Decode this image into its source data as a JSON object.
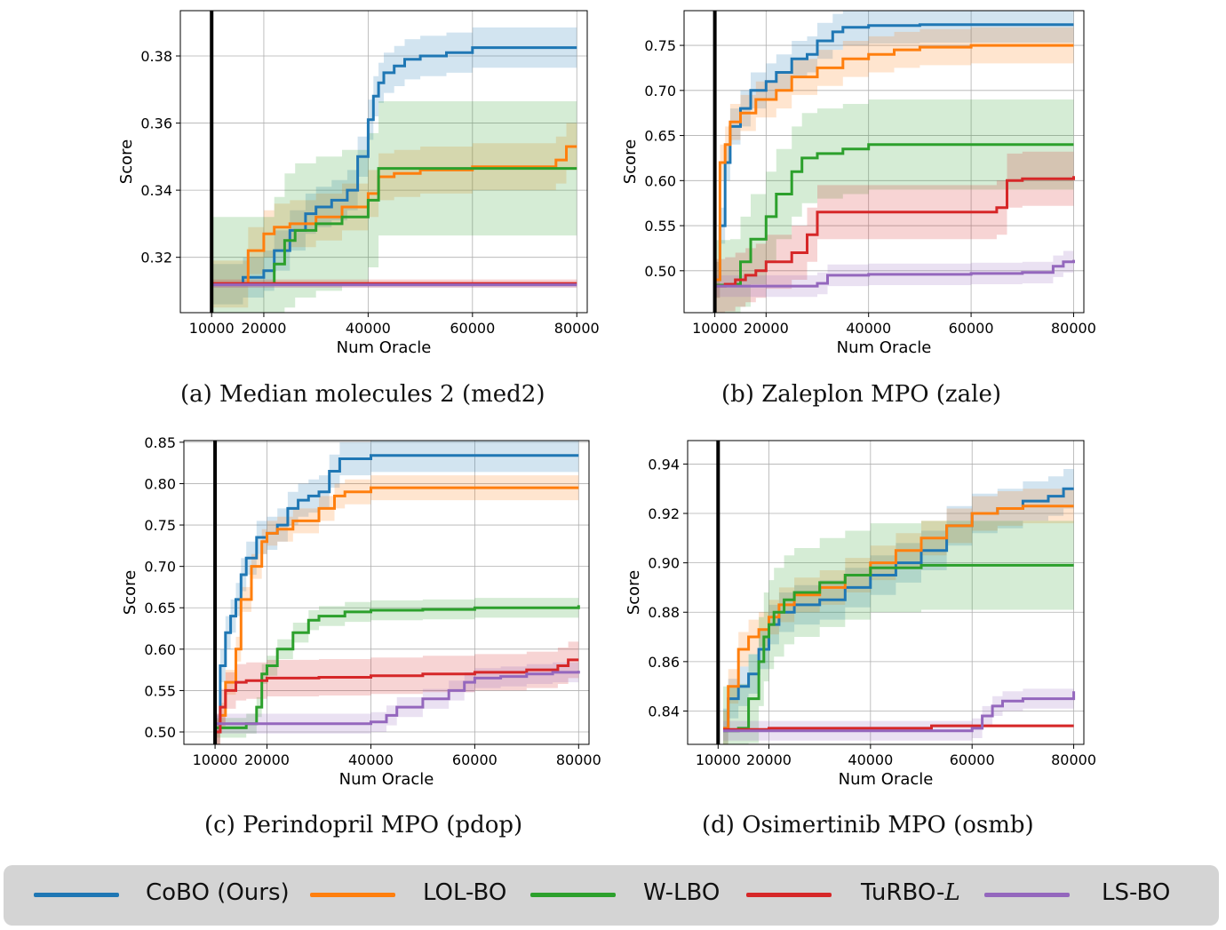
{
  "legend": {
    "entries": [
      {
        "name": "CoBO (Ours)",
        "color": "#1f77b4"
      },
      {
        "name": "LOL-BO",
        "color": "#ff7f0e"
      },
      {
        "name": "W-LBO",
        "color": "#2ca02c"
      },
      {
        "name": "TuRBO-",
        "name_italic": "L",
        "color": "#d62728"
      },
      {
        "name": "LS-BO",
        "color": "#9467bd"
      }
    ]
  },
  "chart_data": [
    {
      "type": "line",
      "caption": "(a) Median molecules 2 (med2)",
      "xlabel": "Num Oracle",
      "ylabel": "Score",
      "xlim": [
        4000,
        82000
      ],
      "ylim": [
        0.3035,
        0.3935
      ],
      "xticks": [
        10000,
        20000,
        40000,
        60000,
        80000
      ],
      "xtick_labels": [
        "10000",
        "20000",
        "40000",
        "60000",
        "80000"
      ],
      "yticks": [
        0.32,
        0.34,
        0.36,
        0.38
      ],
      "ytick_labels": [
        "0.32",
        "0.34",
        "0.36",
        "0.38"
      ],
      "vline": 10000,
      "series": [
        {
          "name": "CoBO (Ours)",
          "x": [
            10000,
            16000,
            20000,
            22000,
            25000,
            28000,
            30000,
            33000,
            36000,
            38000,
            40000,
            41000,
            42000,
            43000,
            45000,
            47000,
            50000,
            55000,
            60000,
            80000
          ],
          "values": [
            0.312,
            0.314,
            0.316,
            0.322,
            0.328,
            0.333,
            0.335,
            0.337,
            0.34,
            0.35,
            0.361,
            0.368,
            0.372,
            0.375,
            0.377,
            0.379,
            0.38,
            0.381,
            0.3825,
            0.3825
          ],
          "band": 0.006
        },
        {
          "name": "LOL-BO",
          "x": [
            10000,
            17000,
            20000,
            22000,
            25000,
            30000,
            35000,
            40000,
            42000,
            45000,
            50000,
            60000,
            70000,
            76000,
            78000,
            80000
          ],
          "values": [
            0.312,
            0.322,
            0.327,
            0.329,
            0.33,
            0.332,
            0.335,
            0.339,
            0.344,
            0.345,
            0.346,
            0.347,
            0.347,
            0.349,
            0.353,
            0.353
          ],
          "band": 0.007
        },
        {
          "name": "W-LBO",
          "x": [
            10000,
            20000,
            22000,
            24000,
            26000,
            30000,
            35000,
            40000,
            42000,
            50000,
            60000,
            80000
          ],
          "values": [
            0.312,
            0.312,
            0.318,
            0.325,
            0.328,
            0.33,
            0.332,
            0.337,
            0.3465,
            0.3465,
            0.3465,
            0.3465
          ],
          "band": 0.02
        },
        {
          "name": "TuRBO-L",
          "x": [
            10000,
            80000
          ],
          "values": [
            0.3122,
            0.3122
          ],
          "band": 0.0012
        },
        {
          "name": "LS-BO",
          "x": [
            10000,
            80000
          ],
          "values": [
            0.3118,
            0.3118
          ],
          "band": 0.0008
        }
      ]
    },
    {
      "type": "line",
      "caption": "(b) Zaleplon MPO (zale)",
      "xlabel": "Num Oracle",
      "ylabel": "Score",
      "xlim": [
        4000,
        82000
      ],
      "ylim": [
        0.4535,
        0.7885
      ],
      "xticks": [
        10000,
        20000,
        40000,
        60000,
        80000
      ],
      "xtick_labels": [
        "10000",
        "20000",
        "40000",
        "60000",
        "80000"
      ],
      "yticks": [
        0.5,
        0.55,
        0.6,
        0.65,
        0.7,
        0.75
      ],
      "ytick_labels": [
        "0.50",
        "0.55",
        "0.60",
        "0.65",
        "0.70",
        "0.75"
      ],
      "vline": 10000,
      "series": [
        {
          "name": "CoBO (Ours)",
          "x": [
            10000,
            11000,
            12000,
            13000,
            15000,
            17000,
            20000,
            22000,
            25000,
            28000,
            30000,
            33000,
            35000,
            40000,
            50000,
            80000
          ],
          "values": [
            0.49,
            0.55,
            0.62,
            0.66,
            0.68,
            0.7,
            0.71,
            0.72,
            0.735,
            0.74,
            0.755,
            0.765,
            0.77,
            0.772,
            0.773,
            0.773
          ],
          "band": 0.02
        },
        {
          "name": "LOL-BO",
          "x": [
            10000,
            11000,
            12000,
            13000,
            15000,
            18000,
            22000,
            25000,
            30000,
            35000,
            40000,
            45000,
            50000,
            60000,
            80000
          ],
          "values": [
            0.49,
            0.62,
            0.64,
            0.665,
            0.675,
            0.69,
            0.7,
            0.715,
            0.725,
            0.735,
            0.74,
            0.745,
            0.748,
            0.75,
            0.75
          ],
          "band": 0.02
        },
        {
          "name": "W-LBO",
          "x": [
            10000,
            13000,
            15000,
            17000,
            20000,
            22000,
            25000,
            27000,
            30000,
            35000,
            40000,
            80000
          ],
          "values": [
            0.484,
            0.485,
            0.51,
            0.535,
            0.56,
            0.585,
            0.61,
            0.625,
            0.63,
            0.635,
            0.64,
            0.64
          ],
          "band": 0.05
        },
        {
          "name": "TuRBO-L",
          "x": [
            10000,
            12000,
            14000,
            16000,
            18000,
            20000,
            25000,
            28000,
            30000,
            50000,
            60000,
            65000,
            67000,
            70000,
            80000
          ],
          "values": [
            0.483,
            0.485,
            0.49,
            0.495,
            0.5,
            0.51,
            0.52,
            0.54,
            0.565,
            0.565,
            0.565,
            0.57,
            0.6,
            0.602,
            0.605
          ],
          "band": 0.03
        },
        {
          "name": "LS-BO",
          "x": [
            10000,
            20000,
            30000,
            32000,
            40000,
            60000,
            70000,
            76000,
            78000,
            80000
          ],
          "values": [
            0.483,
            0.483,
            0.486,
            0.495,
            0.496,
            0.497,
            0.498,
            0.505,
            0.51,
            0.512
          ],
          "band": 0.012
        }
      ]
    },
    {
      "type": "line",
      "caption": "(c) Perindopril MPO (pdop)",
      "xlabel": "Num Oracle",
      "ylabel": "Score",
      "xlim": [
        4000,
        82000
      ],
      "ylim": [
        0.485,
        0.852
      ],
      "xticks": [
        10000,
        20000,
        40000,
        60000,
        80000
      ],
      "xtick_labels": [
        "10000",
        "20000",
        "40000",
        "60000",
        "80000"
      ],
      "yticks": [
        0.5,
        0.55,
        0.6,
        0.65,
        0.7,
        0.75,
        0.8,
        0.85
      ],
      "ytick_labels": [
        "0.50",
        "0.55",
        "0.60",
        "0.65",
        "0.70",
        "0.75",
        "0.80",
        "0.85"
      ],
      "vline": 10000,
      "series": [
        {
          "name": "CoBO (Ours)",
          "x": [
            10000,
            11000,
            12000,
            13000,
            14000,
            15000,
            16000,
            18000,
            20000,
            22000,
            24000,
            26000,
            28000,
            30000,
            32000,
            34000,
            40000,
            80000
          ],
          "values": [
            0.5,
            0.58,
            0.62,
            0.64,
            0.66,
            0.69,
            0.71,
            0.735,
            0.74,
            0.75,
            0.77,
            0.78,
            0.785,
            0.79,
            0.815,
            0.83,
            0.834,
            0.834
          ],
          "band": 0.02
        },
        {
          "name": "LOL-BO",
          "x": [
            10000,
            11000,
            12000,
            14000,
            15000,
            17000,
            19000,
            20000,
            22000,
            25000,
            30000,
            33000,
            35000,
            40000,
            80000
          ],
          "values": [
            0.5,
            0.52,
            0.56,
            0.6,
            0.66,
            0.7,
            0.73,
            0.74,
            0.745,
            0.755,
            0.77,
            0.785,
            0.79,
            0.795,
            0.795
          ],
          "band": 0.015
        },
        {
          "name": "W-LBO",
          "x": [
            10000,
            13000,
            16000,
            18000,
            19000,
            20000,
            22000,
            25000,
            28000,
            30000,
            35000,
            40000,
            50000,
            60000,
            80000
          ],
          "values": [
            0.505,
            0.505,
            0.51,
            0.53,
            0.57,
            0.58,
            0.6,
            0.62,
            0.635,
            0.64,
            0.645,
            0.647,
            0.648,
            0.65,
            0.653
          ],
          "band": 0.012
        },
        {
          "name": "TuRBO-L",
          "x": [
            10000,
            11000,
            12000,
            14000,
            16000,
            20000,
            30000,
            40000,
            50000,
            60000,
            70000,
            76000,
            78000,
            80000
          ],
          "values": [
            0.5,
            0.53,
            0.55,
            0.56,
            0.562,
            0.565,
            0.566,
            0.568,
            0.57,
            0.572,
            0.575,
            0.58,
            0.587,
            0.587
          ],
          "band": 0.022
        },
        {
          "name": "LS-BO",
          "x": [
            10000,
            20000,
            30000,
            40000,
            43000,
            45000,
            50000,
            55000,
            58000,
            60000,
            65000,
            70000,
            75000,
            80000
          ],
          "values": [
            0.51,
            0.51,
            0.51,
            0.512,
            0.52,
            0.53,
            0.54,
            0.55,
            0.56,
            0.565,
            0.567,
            0.57,
            0.572,
            0.574
          ],
          "band": 0.012
        }
      ]
    },
    {
      "type": "line",
      "caption": "(d) Osimertinib MPO (osmb)",
      "xlabel": "Num Oracle",
      "ylabel": "Score",
      "xlim": [
        4000,
        82000
      ],
      "ylim": [
        0.8265,
        0.9495
      ],
      "xticks": [
        10000,
        20000,
        40000,
        60000,
        80000
      ],
      "xtick_labels": [
        "10000",
        "20000",
        "40000",
        "60000",
        "80000"
      ],
      "yticks": [
        0.84,
        0.86,
        0.88,
        0.9,
        0.92,
        0.94
      ],
      "ytick_labels": [
        "0.84",
        "0.86",
        "0.88",
        "0.90",
        "0.92",
        "0.94"
      ],
      "vline": 10000,
      "series": [
        {
          "name": "CoBO (Ours)",
          "x": [
            11000,
            12000,
            14000,
            16000,
            18000,
            20000,
            22000,
            25000,
            30000,
            35000,
            40000,
            45000,
            50000,
            55000,
            60000,
            65000,
            70000,
            75000,
            78000,
            80000
          ],
          "values": [
            0.833,
            0.845,
            0.85,
            0.855,
            0.865,
            0.875,
            0.88,
            0.883,
            0.885,
            0.89,
            0.895,
            0.9,
            0.905,
            0.915,
            0.92,
            0.922,
            0.925,
            0.927,
            0.93,
            0.93
          ],
          "band": 0.008
        },
        {
          "name": "LOL-BO",
          "x": [
            11000,
            12000,
            14000,
            16000,
            18000,
            20000,
            22000,
            25000,
            30000,
            35000,
            40000,
            45000,
            50000,
            55000,
            60000,
            65000,
            70000,
            80000
          ],
          "values": [
            0.833,
            0.85,
            0.865,
            0.87,
            0.873,
            0.878,
            0.883,
            0.887,
            0.89,
            0.895,
            0.9,
            0.905,
            0.91,
            0.915,
            0.92,
            0.922,
            0.923,
            0.923
          ],
          "band": 0.007
        },
        {
          "name": "W-LBO",
          "x": [
            11000,
            14000,
            16000,
            18000,
            19000,
            20000,
            21000,
            23000,
            25000,
            30000,
            35000,
            40000,
            50000,
            80000
          ],
          "values": [
            0.832,
            0.833,
            0.845,
            0.86,
            0.87,
            0.875,
            0.88,
            0.885,
            0.888,
            0.892,
            0.895,
            0.898,
            0.899,
            0.899
          ],
          "band": 0.018
        },
        {
          "name": "TuRBO-L",
          "x": [
            11000,
            20000,
            40000,
            50000,
            52000,
            60000,
            80000
          ],
          "values": [
            0.8325,
            0.833,
            0.833,
            0.833,
            0.834,
            0.834,
            0.834
          ],
          "band": 0.0006
        },
        {
          "name": "LS-BO",
          "x": [
            11000,
            40000,
            50000,
            60000,
            62000,
            64000,
            66000,
            70000,
            75000,
            78000,
            80000
          ],
          "values": [
            0.832,
            0.832,
            0.832,
            0.833,
            0.838,
            0.842,
            0.844,
            0.845,
            0.845,
            0.845,
            0.848
          ],
          "band": 0.004
        }
      ]
    }
  ]
}
